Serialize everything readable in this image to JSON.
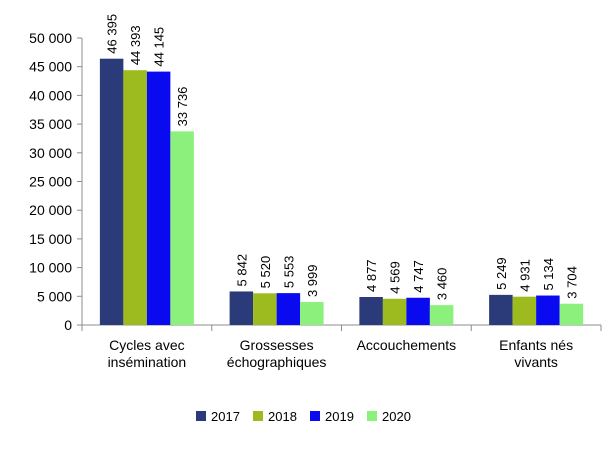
{
  "chart_data": {
    "type": "bar",
    "categories": [
      [
        "Cycles avec",
        "insémination"
      ],
      [
        "Grossesses",
        "échographiques"
      ],
      [
        "Accouchements"
      ],
      [
        "Enfants nés",
        "vivants"
      ]
    ],
    "series": [
      {
        "name": "2017",
        "color": "#2B3A78",
        "values": [
          46395,
          5842,
          4877,
          5249
        ],
        "labels": [
          "46 395",
          "5 842",
          "4 877",
          "5 249"
        ]
      },
      {
        "name": "2018",
        "color": "#9DBB1E",
        "values": [
          44393,
          5520,
          4569,
          4931
        ],
        "labels": [
          "44 393",
          "5 520",
          "4 569",
          "4 931"
        ]
      },
      {
        "name": "2019",
        "color": "#0A0AF0",
        "values": [
          44145,
          5553,
          4747,
          5134
        ],
        "labels": [
          "44 145",
          "5 553",
          "4 747",
          "5 134"
        ]
      },
      {
        "name": "2020",
        "color": "#8CF07C",
        "values": [
          33736,
          3999,
          3460,
          3704
        ],
        "labels": [
          "33 736",
          "3 999",
          "3 460",
          "3 704"
        ]
      }
    ],
    "y_ticks": [
      0,
      5000,
      10000,
      15000,
      20000,
      25000,
      30000,
      35000,
      40000,
      45000,
      50000
    ],
    "y_tick_labels": [
      "0",
      "5 000",
      "10 000",
      "15 000",
      "20 000",
      "25 000",
      "30 000",
      "35 000",
      "40 000",
      "45 000",
      "50 000"
    ],
    "ylim": [
      0,
      50000
    ],
    "title": "",
    "xlabel": "",
    "ylabel": "",
    "grid": false,
    "legend": "bottom"
  }
}
